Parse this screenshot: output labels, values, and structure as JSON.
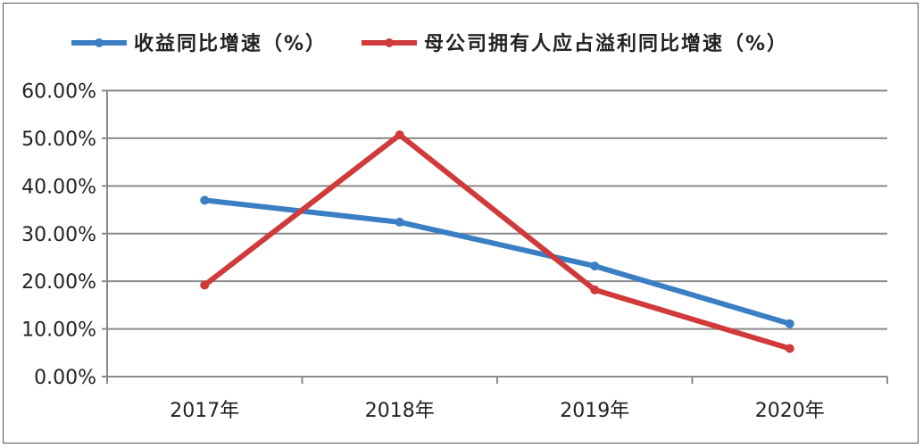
{
  "chart_data": {
    "type": "line",
    "title": "",
    "xlabel": "",
    "ylabel": "",
    "categories": [
      "2017年",
      "2018年",
      "2019年",
      "2020年"
    ],
    "ylim": [
      0,
      60
    ],
    "yticks": [
      "0.00%",
      "10.00%",
      "20.00%",
      "30.00%",
      "40.00%",
      "50.00%",
      "60.00%"
    ],
    "grid": true,
    "legend_position": "top",
    "series": [
      {
        "name": "收益同比增速（%）",
        "color": "#3a7fc4",
        "values": [
          37.0,
          32.4,
          23.2,
          11.1
        ]
      },
      {
        "name": "母公司拥有人应占溢利同比增速（%）",
        "color": "#d03a3a",
        "values": [
          19.2,
          50.7,
          18.2,
          5.9
        ]
      }
    ]
  }
}
